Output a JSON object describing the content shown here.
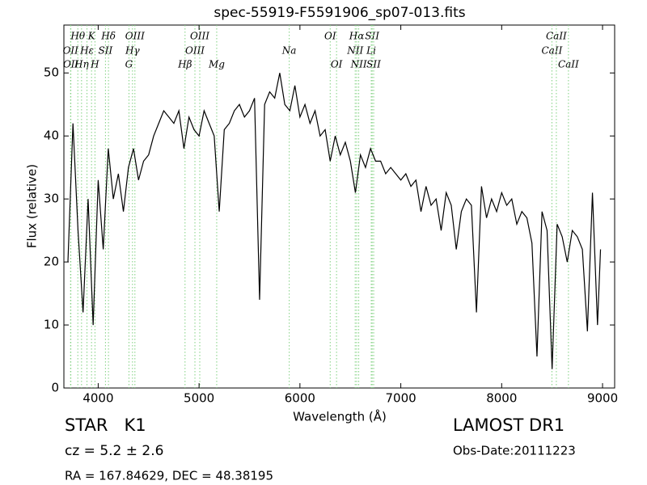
{
  "chart_data": {
    "type": "line",
    "title": "spec-55919-F5591906_sp07-013.fits",
    "x_label": "Wavelength (Å)",
    "y_label": "Flux (relative)",
    "xlim": [
      3660,
      9120
    ],
    "ylim": [
      0,
      57.6
    ],
    "xticks": [
      4000,
      5000,
      6000,
      7000,
      8000,
      9000
    ],
    "yticks": [
      0,
      10,
      20,
      30,
      40,
      50
    ],
    "grid": false,
    "x": [
      3700,
      3750,
      3800,
      3850,
      3900,
      3950,
      4000,
      4050,
      4100,
      4150,
      4200,
      4250,
      4300,
      4350,
      4400,
      4450,
      4500,
      4550,
      4600,
      4650,
      4700,
      4750,
      4800,
      4850,
      4900,
      4950,
      5000,
      5050,
      5100,
      5150,
      5200,
      5250,
      5300,
      5350,
      5400,
      5450,
      5500,
      5550,
      5600,
      5650,
      5700,
      5750,
      5800,
      5850,
      5900,
      5950,
      6000,
      6050,
      6100,
      6150,
      6200,
      6250,
      6300,
      6350,
      6400,
      6450,
      6500,
      6550,
      6600,
      6650,
      6700,
      6750,
      6800,
      6850,
      6900,
      6950,
      7000,
      7050,
      7100,
      7150,
      7200,
      7250,
      7300,
      7350,
      7400,
      7450,
      7500,
      7550,
      7600,
      7650,
      7700,
      7750,
      7800,
      7850,
      7900,
      7950,
      8000,
      8050,
      8100,
      8150,
      8200,
      8250,
      8300,
      8350,
      8400,
      8450,
      8500,
      8550,
      8600,
      8650,
      8700,
      8750,
      8800,
      8850,
      8900,
      8950,
      8980
    ],
    "series": [
      {
        "name": "flux",
        "color": "#000000",
        "values": [
          20,
          42,
          25,
          12,
          30,
          10,
          33,
          22,
          38,
          30,
          34,
          28,
          35,
          38,
          33,
          36,
          37,
          40,
          42,
          44,
          43,
          42,
          44,
          38,
          43,
          41,
          40,
          44,
          42,
          40,
          28,
          41,
          42,
          44,
          45,
          43,
          44,
          46,
          14,
          45,
          47,
          46,
          50,
          45,
          44,
          48,
          43,
          45,
          42,
          44,
          40,
          41,
          36,
          40,
          37,
          39,
          36,
          31,
          37,
          35,
          38,
          36,
          36,
          34,
          35,
          34,
          33,
          34,
          32,
          33,
          28,
          32,
          29,
          30,
          25,
          31,
          29,
          22,
          28,
          30,
          29,
          12,
          32,
          27,
          30,
          28,
          31,
          29,
          30,
          26,
          28,
          27,
          23,
          5,
          28,
          25,
          3,
          26,
          24,
          20,
          25,
          24,
          22,
          9,
          31,
          10,
          22
        ]
      }
    ],
    "line_color": "#7fd07f",
    "spectral_lines": [
      {
        "label": "OII",
        "x": 3726,
        "row": 1
      },
      {
        "label": "OII",
        "x": 3729,
        "row": 2
      },
      {
        "label": "Hθ",
        "x": 3798,
        "row": 0
      },
      {
        "label": "Hη",
        "x": 3835,
        "row": 2
      },
      {
        "label": "K",
        "x": 3934,
        "row": 0
      },
      {
        "label": "Hε",
        "x": 3889,
        "row": 1
      },
      {
        "label": "H",
        "x": 3968,
        "row": 2
      },
      {
        "label": "SII",
        "x": 4072,
        "row": 1
      },
      {
        "label": "Hδ",
        "x": 4102,
        "row": 0
      },
      {
        "label": "G",
        "x": 4305,
        "row": 2
      },
      {
        "label": "Hγ",
        "x": 4340,
        "row": 1
      },
      {
        "label": "OIII",
        "x": 4364,
        "row": 0
      },
      {
        "label": "Hβ",
        "x": 4861,
        "row": 2
      },
      {
        "label": "OIII",
        "x": 4959,
        "row": 1
      },
      {
        "label": "OIII",
        "x": 5007,
        "row": 0
      },
      {
        "label": "Mg",
        "x": 5175,
        "row": 2
      },
      {
        "label": "Na",
        "x": 5894,
        "row": 1
      },
      {
        "label": "OI",
        "x": 6300,
        "row": 0
      },
      {
        "label": "OI",
        "x": 6363,
        "row": 2
      },
      {
        "label": "NII",
        "x": 6548,
        "row": 1
      },
      {
        "label": "Hα",
        "x": 6563,
        "row": 0
      },
      {
        "label": "NII",
        "x": 6583,
        "row": 2
      },
      {
        "label": "Li",
        "x": 6707,
        "row": 1
      },
      {
        "label": "SII",
        "x": 6716,
        "row": 0
      },
      {
        "label": "SII",
        "x": 6731,
        "row": 2
      },
      {
        "label": "CaII",
        "x": 8498,
        "row": 1
      },
      {
        "label": "CaII",
        "x": 8542,
        "row": 0
      },
      {
        "label": "CaII",
        "x": 8662,
        "row": 2
      }
    ],
    "info": {
      "object": "STAR   K1",
      "redshift": "cz = 5.2 ± 2.6",
      "coords": "RA = 167.84629, DEC = 48.38195",
      "survey": "LAMOST DR1",
      "obs_date": "Obs-Date:20111223"
    }
  }
}
